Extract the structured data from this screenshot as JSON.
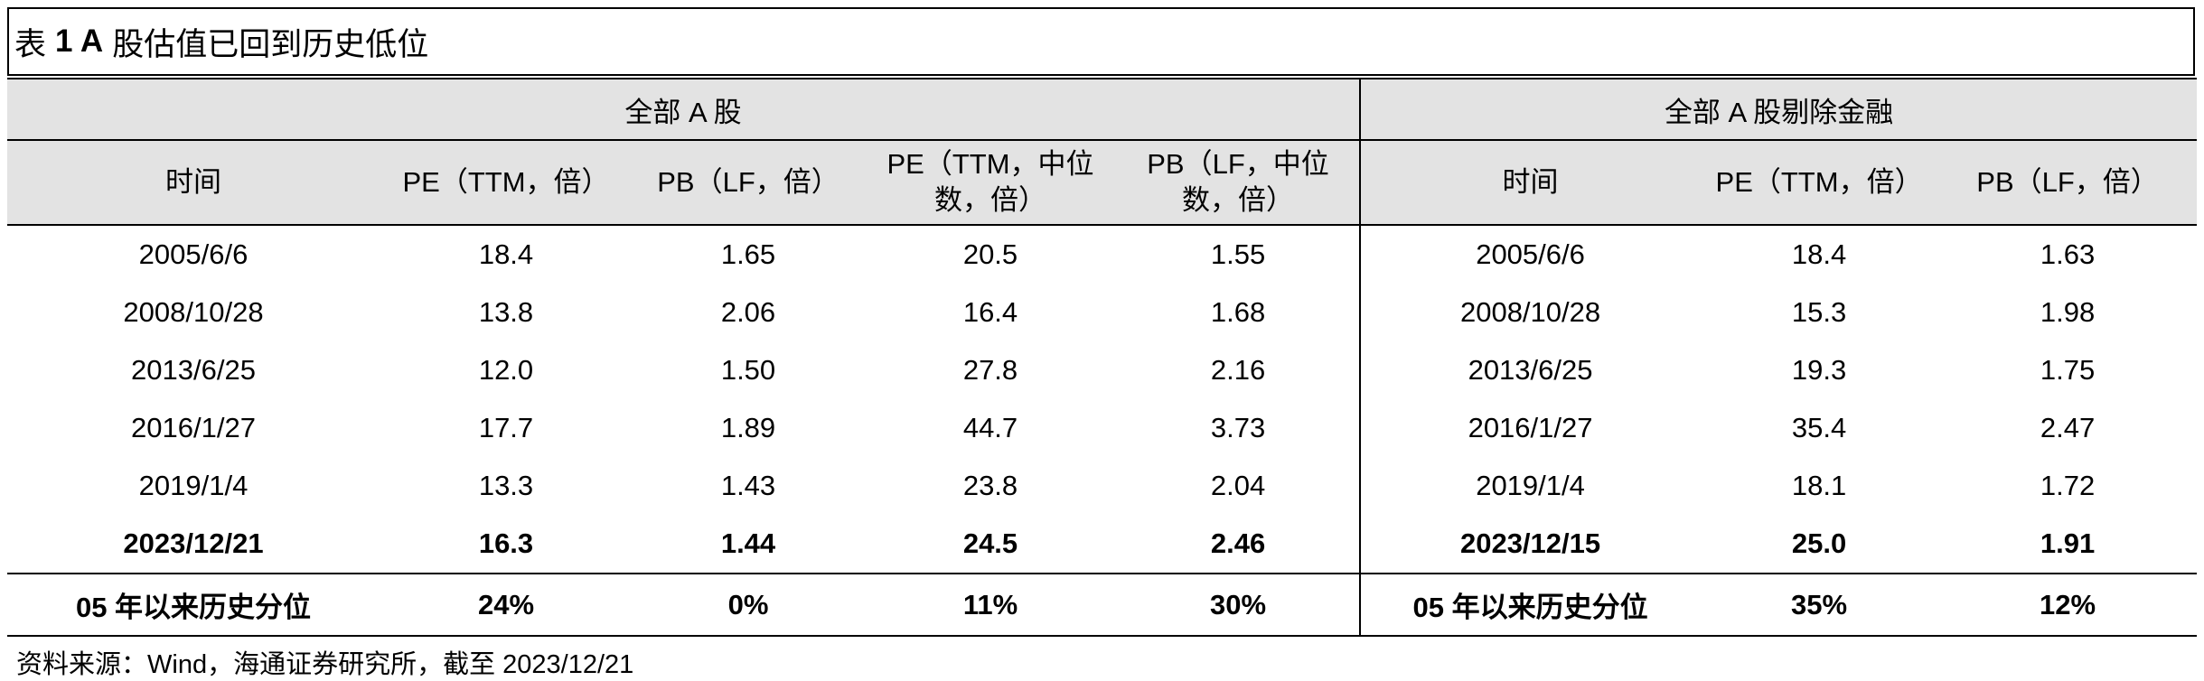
{
  "title": {
    "prefix": "表",
    "number": "1 A",
    "text": "股估值已回到历史低位"
  },
  "table": {
    "groups": [
      "全部 A 股",
      "全部 A 股剔除金融"
    ],
    "columns": [
      "时间",
      "PE（TTM，倍）",
      "PB（LF，倍）",
      "PE（TTM，中位数，倍）",
      "PB（LF，中位数，倍）",
      "时间",
      "PE（TTM，倍）",
      "PB（LF，倍）"
    ],
    "rows": [
      [
        "2005/6/6",
        "18.4",
        "1.65",
        "20.5",
        "1.55",
        "2005/6/6",
        "18.4",
        "1.63"
      ],
      [
        "2008/10/28",
        "13.8",
        "2.06",
        "16.4",
        "1.68",
        "2008/10/28",
        "15.3",
        "1.98"
      ],
      [
        "2013/6/25",
        "12.0",
        "1.50",
        "27.8",
        "2.16",
        "2013/6/25",
        "19.3",
        "1.75"
      ],
      [
        "2016/1/27",
        "17.7",
        "1.89",
        "44.7",
        "3.73",
        "2016/1/27",
        "35.4",
        "2.47"
      ],
      [
        "2019/1/4",
        "13.3",
        "1.43",
        "23.8",
        "2.04",
        "2019/1/4",
        "18.1",
        "1.72"
      ],
      [
        "2023/12/21",
        "16.3",
        "1.44",
        "24.5",
        "2.46",
        "2023/12/15",
        "25.0",
        "1.91"
      ]
    ],
    "summary": [
      "05 年以来历史分位",
      "24%",
      "0%",
      "11%",
      "30%",
      "05 年以来历史分位",
      "35%",
      "12%"
    ]
  },
  "source": "资料来源：Wind，海通证券研究所，截至 2023/12/21"
}
